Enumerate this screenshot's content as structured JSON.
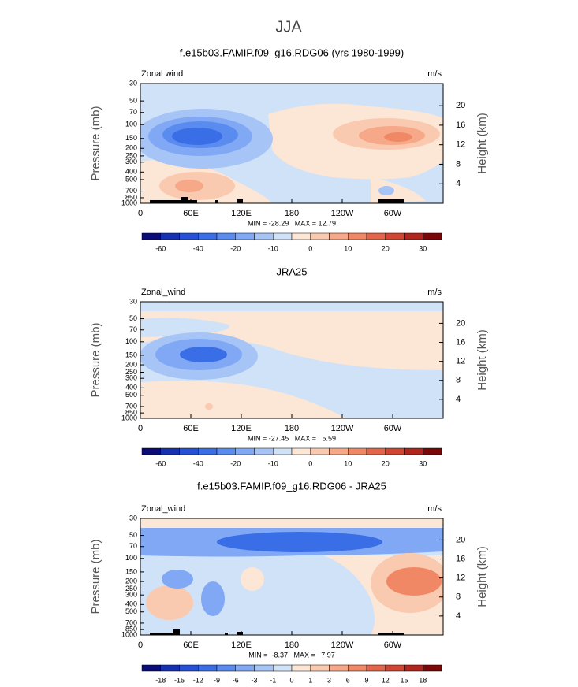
{
  "title": "JJA",
  "chart_data": [
    {
      "type": "contour",
      "title": "f.e15b03.FAMIP.f09_g16.RDG06 (yrs 1980-1999)",
      "variable": "Zonal wind",
      "units": "m/s",
      "ylabel": "Pressure (mb)",
      "y2label": "Height (km)",
      "stats": "MIN = -28.29   MAX = 12.79",
      "xlim": [
        0,
        360
      ],
      "xticks": [
        0,
        {
          "value": 60,
          "label": "60E"
        },
        {
          "value": 120,
          "label": "120E"
        },
        180,
        {
          "value": 240,
          "label": "120W"
        },
        {
          "value": 300,
          "label": "60W"
        }
      ],
      "ylim": [
        1000,
        30
      ],
      "log_y": true,
      "yticks": [
        30,
        50,
        70,
        100,
        150,
        200,
        250,
        300,
        400,
        500,
        700,
        850,
        1000
      ],
      "y2ticks": [
        4,
        8,
        12,
        16,
        20
      ],
      "colorbar_ticks": [
        -60,
        -40,
        -20,
        -10,
        0,
        10,
        20,
        30
      ],
      "colors": [
        "#0c0c78",
        "#1530b0",
        "#2650d6",
        "#3a6ee6",
        "#5a8cf0",
        "#80a8f4",
        "#a6c4f6",
        "#cfe2f8",
        "#fce6d6",
        "#f9cab0",
        "#f6a888",
        "#f08866",
        "#e4664a",
        "#d04632",
        "#b0261c",
        "#7a0808"
      ]
    },
    {
      "type": "contour",
      "title": "JRA25",
      "variable": "Zonal_wind",
      "units": "m/s",
      "ylabel": "Pressure (mb)",
      "y2label": "Height (km)",
      "stats": "MIN = -27.45   MAX =   5.59",
      "xlim": [
        0,
        360
      ],
      "xticks": [
        0,
        {
          "value": 60,
          "label": "60E"
        },
        {
          "value": 120,
          "label": "120E"
        },
        180,
        {
          "value": 240,
          "label": "120W"
        },
        {
          "value": 300,
          "label": "60W"
        }
      ],
      "ylim": [
        1000,
        30
      ],
      "log_y": true,
      "yticks": [
        30,
        50,
        70,
        100,
        150,
        200,
        250,
        300,
        400,
        500,
        700,
        850,
        1000
      ],
      "y2ticks": [
        4,
        8,
        12,
        16,
        20
      ],
      "colorbar_ticks": [
        -60,
        -40,
        -20,
        -10,
        0,
        10,
        20,
        30
      ],
      "colors": [
        "#0c0c78",
        "#1530b0",
        "#2650d6",
        "#3a6ee6",
        "#5a8cf0",
        "#80a8f4",
        "#a6c4f6",
        "#cfe2f8",
        "#fce6d6",
        "#f9cab0",
        "#f6a888",
        "#f08866",
        "#e4664a",
        "#d04632",
        "#b0261c",
        "#7a0808"
      ]
    },
    {
      "type": "contour",
      "title": "f.e15b03.FAMIP.f09_g16.RDG06 - JRA25",
      "variable": "Zonal_wind",
      "units": "m/s",
      "ylabel": "Pressure (mb)",
      "y2label": "Height (km)",
      "stats": "MIN =  -8.37   MAX =   7.97",
      "xlim": [
        0,
        360
      ],
      "xticks": [
        0,
        {
          "value": 60,
          "label": "60E"
        },
        {
          "value": 120,
          "label": "120E"
        },
        180,
        {
          "value": 240,
          "label": "120W"
        },
        {
          "value": 300,
          "label": "60W"
        }
      ],
      "ylim": [
        1000,
        30
      ],
      "log_y": true,
      "yticks": [
        30,
        50,
        70,
        100,
        150,
        200,
        250,
        300,
        400,
        500,
        700,
        850,
        1000
      ],
      "y2ticks": [
        4,
        8,
        12,
        16,
        20
      ],
      "colorbar_ticks": [
        -18,
        -15,
        -12,
        -9,
        -6,
        -3,
        -1,
        0,
        1,
        3,
        6,
        9,
        12,
        15,
        18
      ],
      "colors": [
        "#0c0c78",
        "#1530b0",
        "#2650d6",
        "#3a6ee6",
        "#5a8cf0",
        "#80a8f4",
        "#a6c4f6",
        "#cfe2f8",
        "#fce6d6",
        "#f9cab0",
        "#f6a888",
        "#f08866",
        "#e4664a",
        "#d04632",
        "#b0261c",
        "#7a0808"
      ]
    }
  ]
}
